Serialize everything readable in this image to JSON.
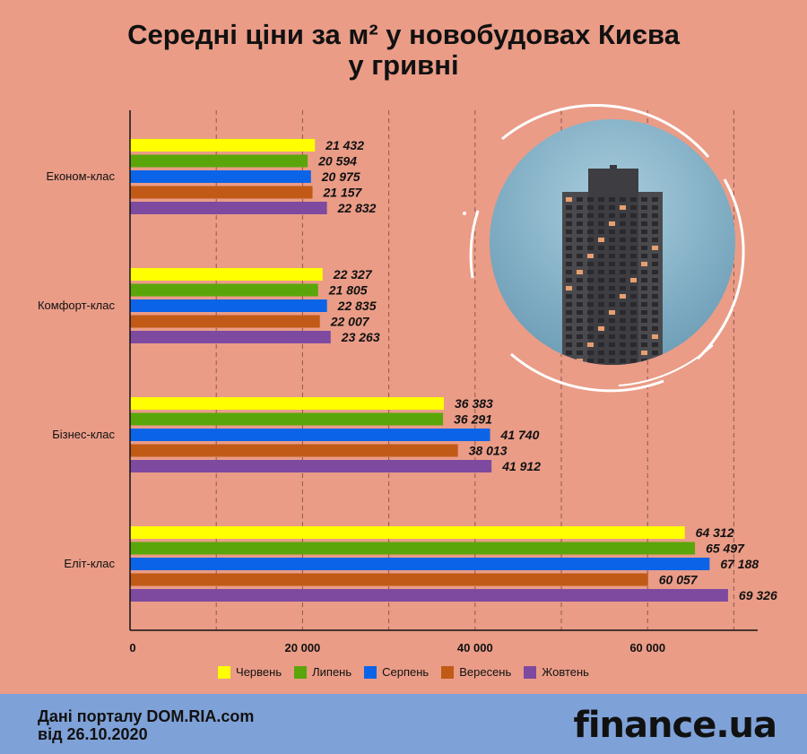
{
  "title": {
    "line1": "Середні ціни за м² у новобудовах Києва",
    "line2": "у гривні"
  },
  "footer": {
    "source_line1": "Дані порталу DOM.RIA.com",
    "source_line2": "від 26.10.2020",
    "brand": "finance.ua"
  },
  "chart_data": {
    "type": "bar",
    "orientation": "horizontal",
    "categories": [
      "Економ-клас",
      "Комфорт-клас",
      "Бізнес-клас",
      "Еліт-клас"
    ],
    "series": [
      {
        "name": "Червень",
        "color": "#ffff00",
        "values": [
          21432,
          22327,
          36383,
          64312
        ],
        "labels": [
          "21 432",
          "22 327",
          "36 383",
          "64 312"
        ]
      },
      {
        "name": "Липень",
        "color": "#5aa60a",
        "values": [
          20594,
          21805,
          36291,
          65497
        ],
        "labels": [
          "20 594",
          "21 805",
          "36 291",
          "65 497"
        ]
      },
      {
        "name": "Серпень",
        "color": "#0b64e8",
        "values": [
          20975,
          22835,
          41740,
          67188
        ],
        "labels": [
          "20 975",
          "22 835",
          "41 740",
          "67 188"
        ]
      },
      {
        "name": "Вересень",
        "color": "#c05a16",
        "values": [
          21157,
          22007,
          38013,
          60057
        ],
        "labels": [
          "21 157",
          "22 007",
          "38 013",
          "60 057"
        ]
      },
      {
        "name": "Жовтень",
        "color": "#7d4aa0",
        "values": [
          22832,
          23263,
          41912,
          69326
        ],
        "labels": [
          "22 832",
          "23 263",
          "41 912",
          "69 326"
        ]
      }
    ],
    "xlim": [
      0,
      73000
    ],
    "x_ticks": [
      0,
      20000,
      40000,
      60000
    ],
    "x_tick_labels": [
      "0",
      "20 000",
      "40 000",
      "60 000"
    ],
    "grid": "vertical dashed",
    "legend_position": "bottom"
  },
  "decor": {
    "photo": "building-photo"
  }
}
